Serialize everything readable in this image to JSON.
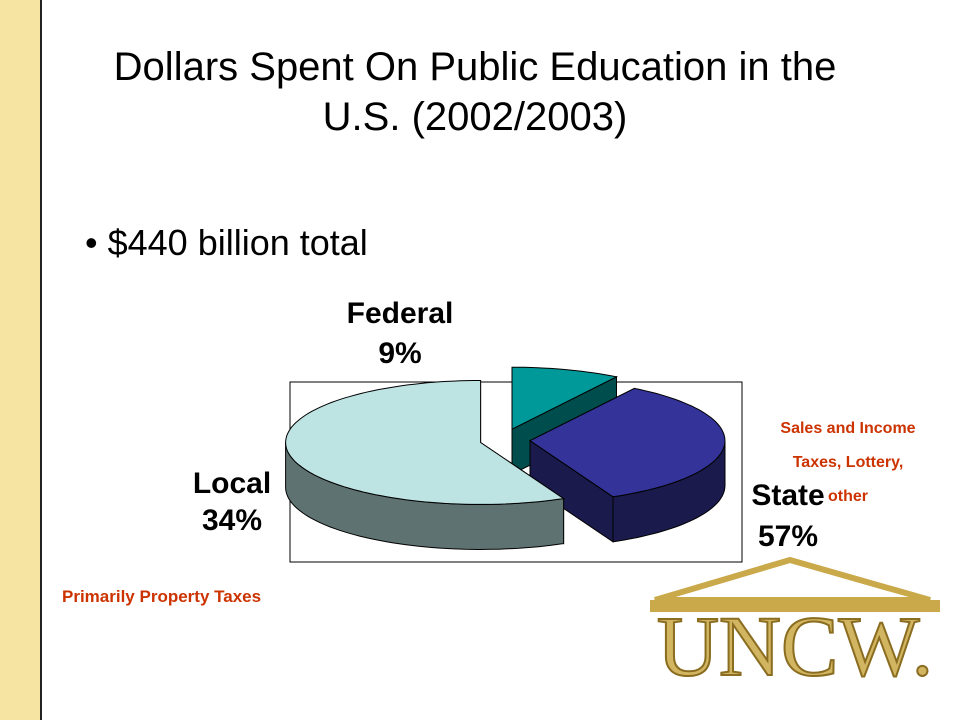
{
  "chart_data": {
    "type": "pie",
    "title": "Dollars Spent On Public Education in the U.S. (2002/2003)",
    "subtitle": "$440 billion total",
    "categories": [
      "Federal",
      "Local",
      "State"
    ],
    "values": [
      9,
      34,
      57
    ],
    "value_labels": [
      "9%",
      "34%",
      "57%"
    ],
    "colors": [
      "#009999",
      "#333399",
      "#bde3e3"
    ],
    "annotations": [
      "Sales and Income Taxes, Lottery, other",
      "Primarily Property Taxes"
    ]
  },
  "logo": {
    "text": "UNCW."
  }
}
